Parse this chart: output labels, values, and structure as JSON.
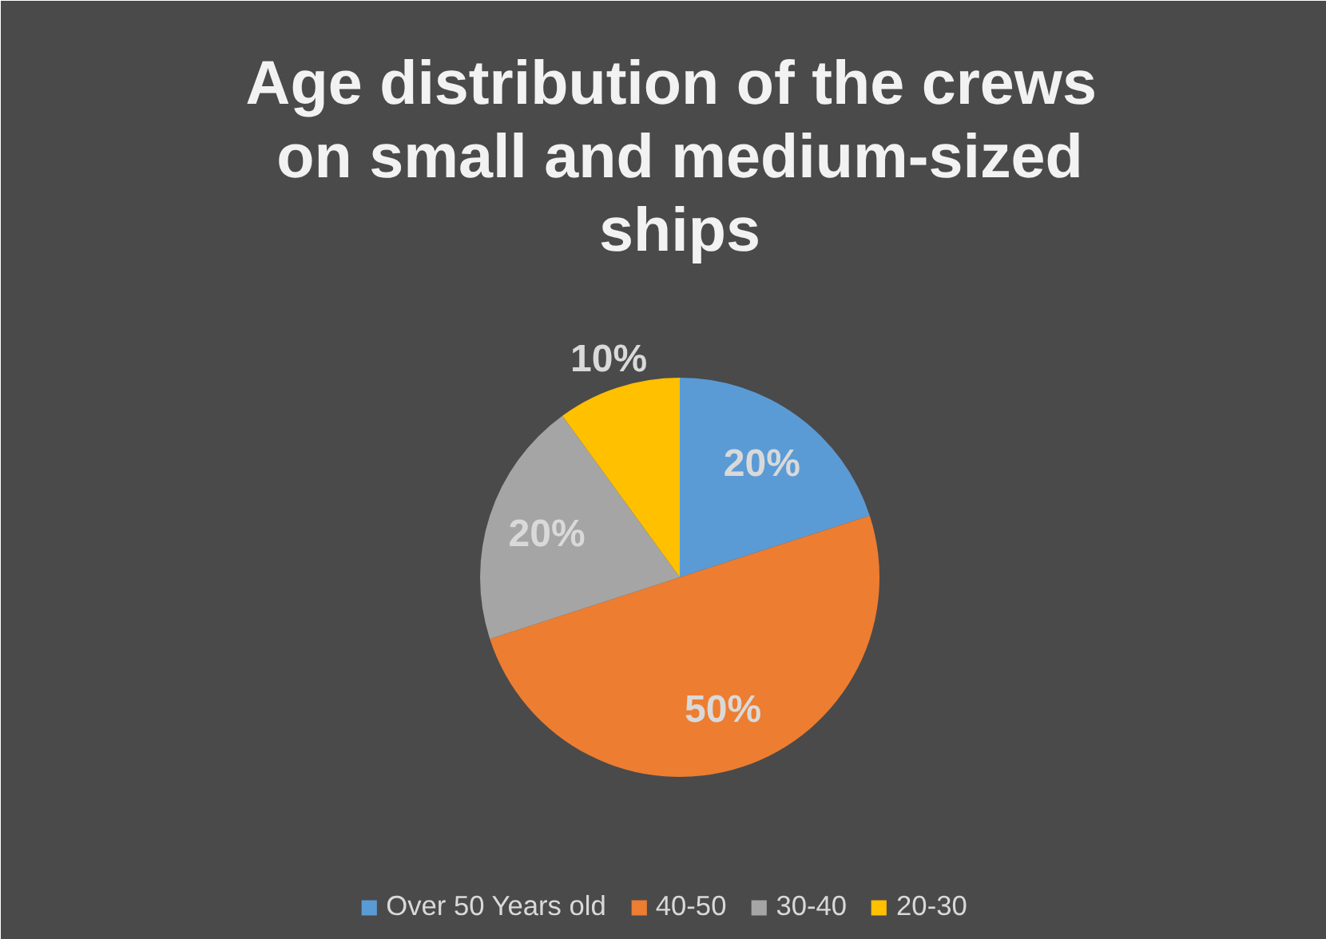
{
  "chart_data": {
    "type": "pie",
    "title": "Age distribution of  the crews on small and medium-sized ships",
    "categories": [
      "Over 50 Years old",
      "40-50",
      "30-40",
      "20-30"
    ],
    "values": [
      20,
      50,
      20,
      10
    ],
    "colors": [
      "#5b9bd5",
      "#ed7d31",
      "#a5a5a5",
      "#ffc000"
    ],
    "value_labels": [
      "20%",
      "50%",
      "20%",
      "10%"
    ],
    "legend": "bottom"
  }
}
